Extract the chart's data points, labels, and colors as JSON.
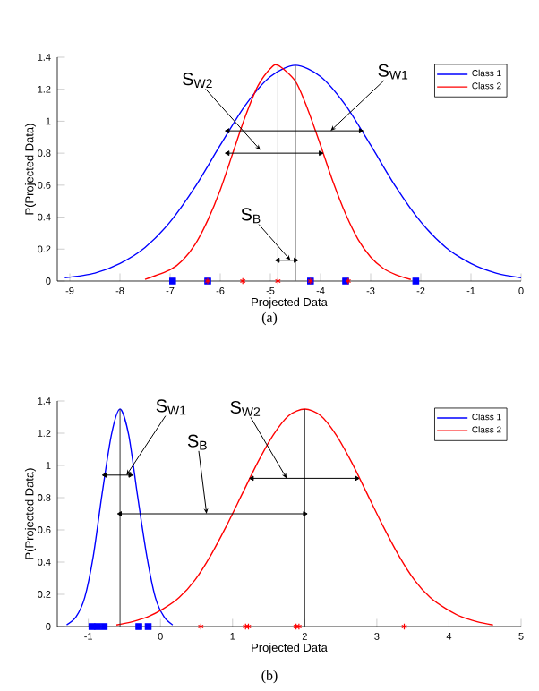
{
  "chart_data": [
    {
      "type": "line",
      "xlabel": "Projected Data",
      "ylabel": "P(Projected Data)",
      "xlim": [
        -9.25,
        0
      ],
      "ylim": [
        0,
        1.4
      ],
      "xticks": [
        -9,
        -8,
        -7,
        -6,
        -5,
        -4,
        -3,
        -2,
        -1,
        0
      ],
      "yticks": [
        0,
        0.2,
        0.4,
        0.6,
        0.8,
        1,
        1.2,
        1.4
      ],
      "legend": "top right",
      "series": [
        {
          "name": "Class 1",
          "color": "#0000ff",
          "x": [
            -9.1,
            -8.5,
            -8,
            -7.5,
            -7,
            -6.5,
            -6,
            -5.5,
            -5,
            -4.5,
            -4,
            -3.5,
            -3,
            -2.5,
            -2,
            -1.5,
            -1,
            -0.5,
            0
          ],
          "values": [
            0.02,
            0.05,
            0.11,
            0.21,
            0.37,
            0.59,
            0.85,
            1.1,
            1.28,
            1.35,
            1.28,
            1.1,
            0.85,
            0.59,
            0.37,
            0.21,
            0.11,
            0.05,
            0.02
          ]
        },
        {
          "name": "Class 2",
          "color": "#ff0000",
          "x": [
            -7.5,
            -7,
            -6.75,
            -6.5,
            -6.25,
            -6,
            -5.75,
            -5.5,
            -5.25,
            -5,
            -4.85,
            -4.5,
            -4.25,
            -4,
            -3.75,
            -3.5,
            -3.25,
            -3,
            -2.75,
            -2.5,
            -2.2
          ],
          "values": [
            0.01,
            0.07,
            0.13,
            0.23,
            0.38,
            0.57,
            0.8,
            1.03,
            1.22,
            1.33,
            1.35,
            1.25,
            1.07,
            0.85,
            0.62,
            0.42,
            0.26,
            0.15,
            0.08,
            0.04,
            0.01
          ]
        },
        {
          "type": "scatter",
          "marker": "square",
          "color": "#0000ff",
          "x": [
            -6.95,
            -6.25,
            -4.2,
            -3.5,
            -2.1
          ],
          "values": [
            0,
            0,
            0,
            0,
            0
          ]
        },
        {
          "type": "scatter",
          "marker": "cross",
          "color": "#ff0000",
          "x": [
            -6.25,
            -5.55,
            -4.85,
            -4.2,
            -3.45
          ],
          "values": [
            0,
            0,
            0,
            0,
            0
          ]
        },
        {
          "color": "#555555",
          "x": [
            -4.85,
            -4.85
          ],
          "values": [
            0,
            1.35
          ]
        },
        {
          "color": "#555555",
          "x": [
            -4.5,
            -4.5
          ],
          "values": [
            0,
            1.35
          ]
        },
        {
          "color": "#000000",
          "marker": "triangle",
          "x": [
            -5.85,
            -3.2
          ],
          "values": [
            0.94,
            0.94
          ]
        },
        {
          "color": "#000000",
          "marker": "triangle",
          "x": [
            -5.85,
            -4.0
          ],
          "values": [
            0.8,
            0.8
          ]
        },
        {
          "color": "#000000",
          "marker": "triangle",
          "x": [
            -4.85,
            -4.5
          ],
          "values": [
            0.13,
            0.13
          ]
        }
      ],
      "annotations": [
        {
          "text": "S$_{W1}$",
          "x": -3.8,
          "y": 0.94
        },
        {
          "text": "S$_{W2}$",
          "x": -5.2,
          "y": 0.82
        },
        {
          "text": "S$_{B}$",
          "x": -4.6,
          "y": 0.13
        },
        "(a)"
      ]
    },
    {
      "type": "line",
      "xlabel": "Projected Data",
      "ylabel": "P(Projected Data)",
      "xlim": [
        -1.43,
        5
      ],
      "ylim": [
        0,
        1.4
      ],
      "xticks": [
        -1,
        0,
        1,
        2,
        3,
        4,
        5
      ],
      "yticks": [
        0,
        0.2,
        0.4,
        0.6,
        0.8,
        1,
        1.2,
        1.4
      ],
      "legend": "top right",
      "series": [
        {
          "name": "Class 1",
          "color": "#0000ff",
          "x": [
            -1.3,
            -1.17,
            -1.05,
            -0.93,
            -0.81,
            -0.68,
            -0.56,
            -0.44,
            -0.32,
            -0.19,
            -0.07,
            0.05,
            0.17
          ],
          "values": [
            0.01,
            0.06,
            0.18,
            0.44,
            0.82,
            1.19,
            1.35,
            1.19,
            0.82,
            0.44,
            0.18,
            0.06,
            0.01
          ]
        },
        {
          "name": "Class 2",
          "color": "#ff0000",
          "x": [
            -0.61,
            -0.39,
            -0.175,
            0.04,
            0.26,
            0.48,
            0.695,
            0.91,
            1.13,
            1.35,
            1.565,
            1.78,
            2,
            2.22,
            2.435,
            2.65,
            2.87,
            3.09,
            3.305,
            3.52,
            3.74,
            3.96,
            4.175,
            4.39,
            4.61
          ],
          "values": [
            0.01,
            0.03,
            0.06,
            0.11,
            0.18,
            0.29,
            0.44,
            0.62,
            0.82,
            1.02,
            1.19,
            1.31,
            1.35,
            1.31,
            1.19,
            1.02,
            0.82,
            0.62,
            0.44,
            0.29,
            0.18,
            0.11,
            0.06,
            0.03,
            0.01
          ]
        },
        {
          "type": "scatter",
          "marker": "square",
          "color": "#0000ff",
          "x": [
            -0.95,
            -0.87,
            -0.78,
            -0.3,
            -0.17
          ],
          "values": [
            0,
            0,
            0,
            0,
            0
          ]
        },
        {
          "type": "scatter",
          "marker": "cross",
          "color": "#ff0000",
          "x": [
            0.56,
            1.18,
            1.22,
            1.88,
            1.92,
            3.38
          ],
          "values": [
            0,
            0,
            0,
            0,
            0,
            0
          ]
        },
        {
          "color": "#333333",
          "x": [
            -0.56,
            -0.56
          ],
          "values": [
            0,
            1.35
          ]
        },
        {
          "color": "#333333",
          "x": [
            2,
            2
          ],
          "values": [
            0,
            1.35
          ]
        },
        {
          "color": "#000000",
          "marker": "triangle",
          "x": [
            -0.77,
            -0.42
          ],
          "values": [
            0.94,
            0.94
          ]
        },
        {
          "color": "#000000",
          "marker": "triangle",
          "x": [
            1.27,
            2.72
          ],
          "values": [
            0.92,
            0.92
          ]
        },
        {
          "color": "#000000",
          "marker": "triangle",
          "x": [
            -0.56,
            2
          ],
          "values": [
            0.7,
            0.7
          ]
        }
      ],
      "annotations": [
        {
          "text": "S$_{W1}$",
          "x": -0.47,
          "y": 0.94
        },
        {
          "text": "S$_{W2}$",
          "x": 1.75,
          "y": 0.92
        },
        {
          "text": "S$_{B}$",
          "x": 0.64,
          "y": 0.7
        },
        "(b)"
      ]
    }
  ]
}
